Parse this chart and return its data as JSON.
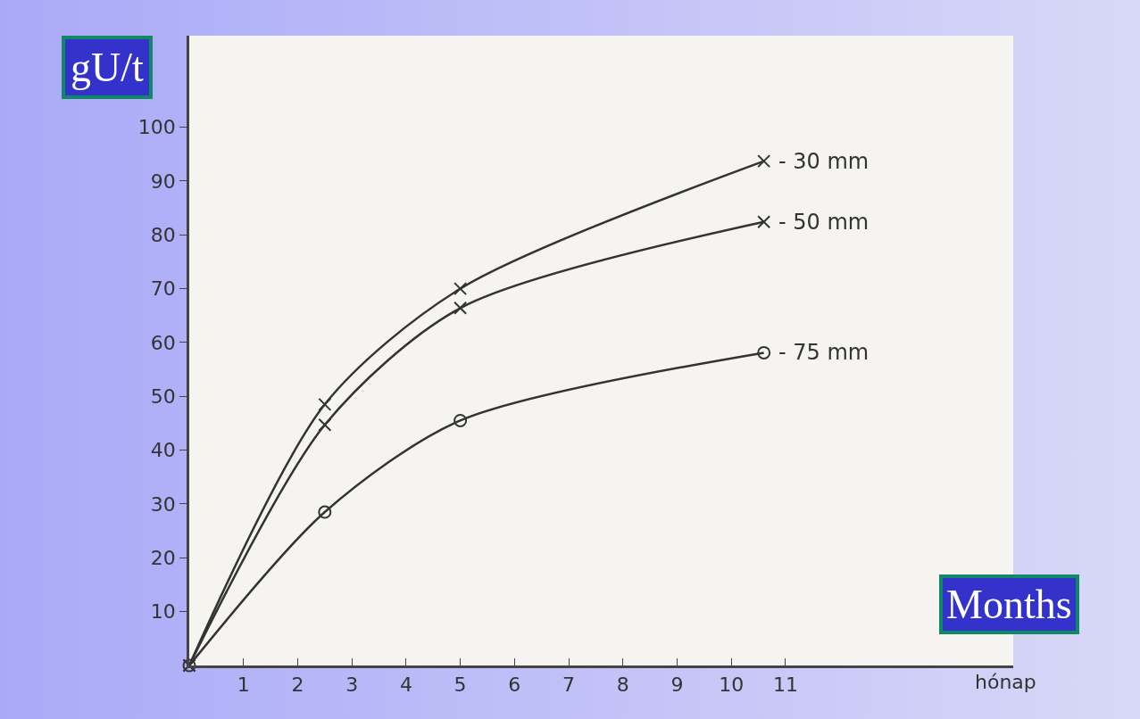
{
  "chart_data": {
    "type": "line",
    "ylabel": "gU/t",
    "xlabel": "Months",
    "annotations": [
      "hónap"
    ],
    "x": [
      0,
      2.5,
      5,
      10.6
    ],
    "series": [
      {
        "name": "- 30 mm",
        "color": "#333333",
        "marker": "cross",
        "values": [
          0,
          48.5,
          70,
          93.7
        ]
      },
      {
        "name": "- 50 mm",
        "color": "#333333",
        "marker": "cross",
        "values": [
          0,
          44.7,
          66.4,
          82.4
        ]
      },
      {
        "name": "- 75 mm",
        "color": "#333333",
        "marker": "circle",
        "values": [
          0,
          28.5,
          45.5,
          58.1
        ]
      }
    ],
    "xlim": [
      0,
      15.2
    ],
    "ylim": [
      0,
      117
    ],
    "xticks": [
      1,
      2,
      3,
      4,
      5,
      6,
      7,
      8,
      9,
      10,
      11
    ],
    "yticks": [
      10,
      20,
      30,
      40,
      50,
      60,
      70,
      80,
      90,
      100
    ],
    "grid": false,
    "legend": false,
    "line_style": "solid"
  }
}
